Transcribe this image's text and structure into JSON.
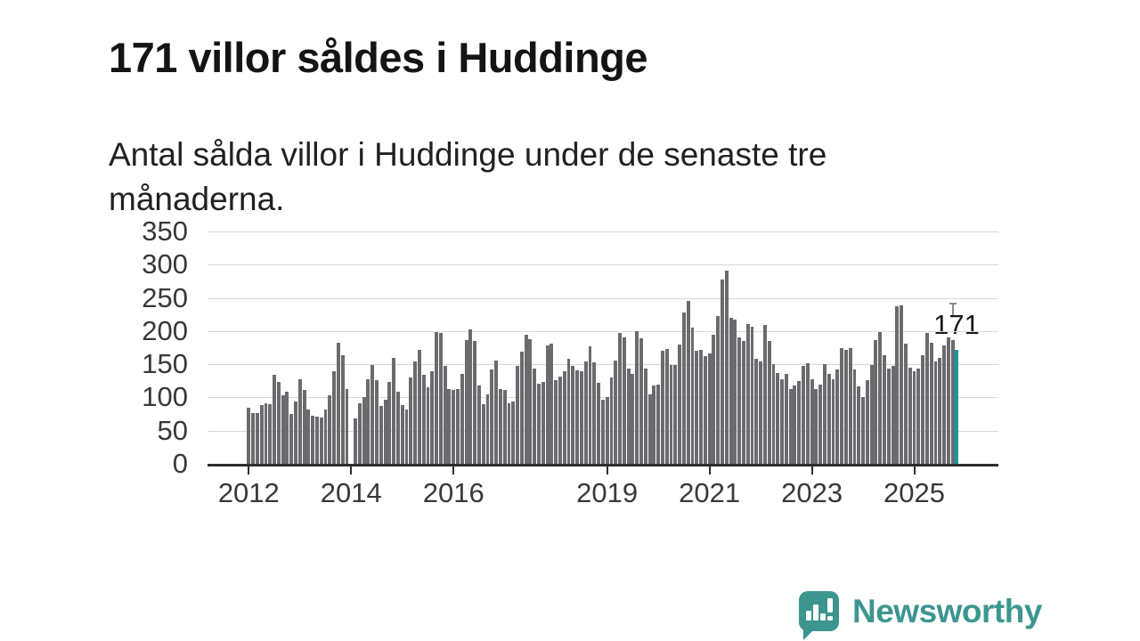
{
  "header": {
    "title": "171 villor såldes i Huddinge",
    "subtitle": "Antal sålda villor i Huddinge under de senaste tre månaderna."
  },
  "chart_data": {
    "type": "bar",
    "title": "171 villor såldes i Huddinge",
    "xlabel": "",
    "ylabel": "",
    "ylim": [
      0,
      350
    ],
    "grid": "horizontal",
    "x_unit": "month",
    "x_start": "2012-01",
    "x_end": "2025-11",
    "note": "one missing month (no bar) at the 2014 tick",
    "y_ticks": [
      0,
      50,
      100,
      150,
      200,
      250,
      300,
      350
    ],
    "x_ticks": [
      {
        "month_index": 0,
        "label": "2012"
      },
      {
        "month_index": 24,
        "label": "2014"
      },
      {
        "month_index": 48,
        "label": "2016"
      },
      {
        "month_index": 84,
        "label": "2019"
      },
      {
        "month_index": 108,
        "label": "2021"
      },
      {
        "month_index": 132,
        "label": "2023"
      },
      {
        "month_index": 156,
        "label": "2025"
      }
    ],
    "values": [
      84,
      76,
      77,
      89,
      91,
      90,
      134,
      123,
      103,
      109,
      75,
      94,
      128,
      111,
      82,
      72,
      71,
      70,
      82,
      103,
      139,
      182,
      164,
      112,
      null,
      68,
      91,
      100,
      127,
      149,
      126,
      87,
      96,
      123,
      159,
      108,
      88,
      82,
      130,
      154,
      171,
      134,
      115,
      139,
      198,
      197,
      148,
      112,
      111,
      112,
      135,
      187,
      202,
      185,
      118,
      90,
      105,
      142,
      156,
      113,
      111,
      91,
      94,
      147,
      169,
      194,
      188,
      144,
      121,
      124,
      179,
      181,
      126,
      131,
      140,
      158,
      147,
      141,
      139,
      154,
      177,
      153,
      122,
      97,
      100,
      130,
      155,
      197,
      190,
      143,
      136,
      200,
      189,
      143,
      105,
      118,
      120,
      170,
      173,
      149,
      149,
      180,
      228,
      245,
      205,
      170,
      172,
      162,
      166,
      194,
      223,
      278,
      291,
      220,
      217,
      190,
      185,
      210,
      206,
      158,
      154,
      209,
      185,
      150,
      137,
      128,
      135,
      112,
      118,
      125,
      148,
      152,
      128,
      112,
      120,
      150,
      135,
      128,
      142,
      175,
      172,
      174,
      142,
      117,
      100,
      126,
      149,
      187,
      198,
      164,
      144,
      148,
      238,
      239,
      181,
      145,
      140,
      143,
      163,
      197,
      183,
      154,
      160,
      179,
      190,
      186,
      171
    ],
    "highlight": {
      "index": 166,
      "value": 171,
      "label": "171"
    }
  },
  "colors": {
    "bar": "#6a6a6f",
    "highlight_bar": "#0f99a0",
    "axis": "#2e2e2e",
    "grid": "#d8d8d8",
    "brand": "#3c968f"
  },
  "footer": {
    "brand": "Newsworthy"
  }
}
